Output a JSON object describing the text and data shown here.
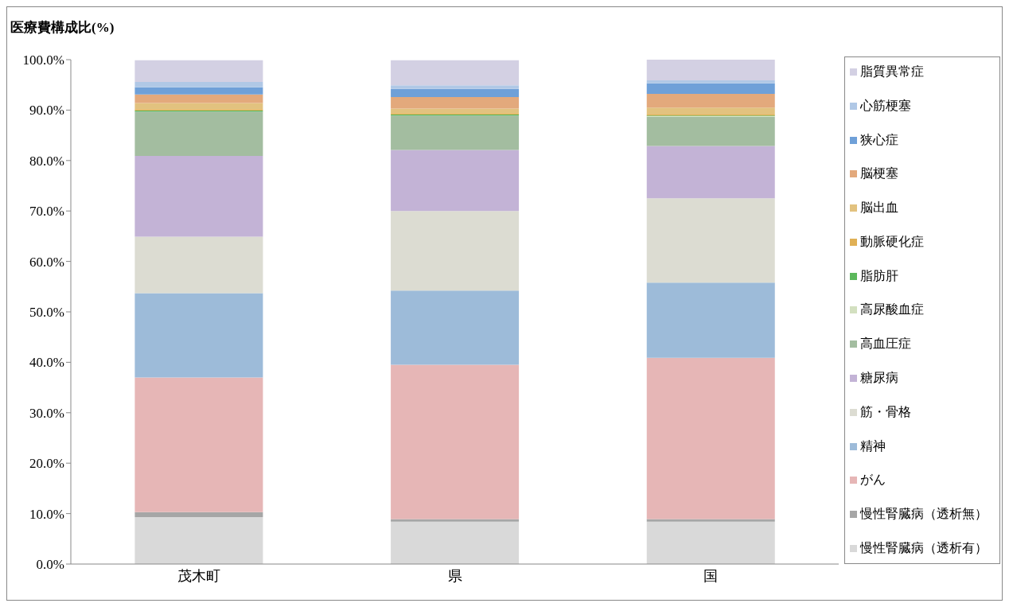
{
  "chart_data": {
    "type": "bar",
    "title": "医療費構成比(%)",
    "stacked": true,
    "legend": "right",
    "categories": [
      "茂木町",
      "県",
      "国"
    ],
    "ylim": [
      0,
      100
    ],
    "yticks": [
      {
        "value": 0,
        "label": "0.0%"
      },
      {
        "value": 10,
        "label": "10.0%"
      },
      {
        "value": 20,
        "label": "20.0%"
      },
      {
        "value": 30,
        "label": "30.0%"
      },
      {
        "value": 40,
        "label": "40.0%"
      },
      {
        "value": 50,
        "label": "50.0%"
      },
      {
        "value": 60,
        "label": "60.0%"
      },
      {
        "value": 70,
        "label": "70.0%"
      },
      {
        "value": 80,
        "label": "80.0%"
      },
      {
        "value": 90,
        "label": "90.0%"
      },
      {
        "value": 100,
        "label": "100.0%"
      }
    ],
    "series": [
      {
        "name": "慢性腎臓病（透析有）",
        "color": "#d9d9d9",
        "values": [
          9.3,
          8.4,
          8.4
        ]
      },
      {
        "name": "慢性腎臓病（透析無）",
        "color": "#a6a6a6",
        "values": [
          1.0,
          0.5,
          0.5
        ]
      },
      {
        "name": "がん",
        "color": "#e6b6b6",
        "values": [
          26.7,
          30.6,
          32.0
        ]
      },
      {
        "name": "精神",
        "color": "#9dbbd9",
        "values": [
          16.7,
          14.7,
          14.9
        ]
      },
      {
        "name": "筋・骨格",
        "color": "#dcdcd2",
        "values": [
          11.2,
          15.8,
          16.7
        ]
      },
      {
        "name": "糖尿病",
        "color": "#c3b3d6",
        "values": [
          16.0,
          12.1,
          10.4
        ]
      },
      {
        "name": "高血圧症",
        "color": "#a3bda0",
        "values": [
          8.8,
          6.8,
          5.8
        ]
      },
      {
        "name": "高尿酸血症",
        "color": "#d3e0c0",
        "values": [
          null,
          null,
          0.1
        ]
      },
      {
        "name": "脂肪肝",
        "color": "#5cb85c",
        "values": [
          0.2,
          0.2,
          0.1
        ]
      },
      {
        "name": "動脈硬化症",
        "color": "#e0b055",
        "values": [
          0.3,
          0.3,
          0.2
        ]
      },
      {
        "name": "脳出血",
        "color": "#e2c27f",
        "values": [
          1.2,
          0.9,
          1.4
        ]
      },
      {
        "name": "脳梗塞",
        "color": "#e3a97c",
        "values": [
          1.7,
          2.3,
          2.7
        ]
      },
      {
        "name": "狭心症",
        "color": "#6fa0d8",
        "values": [
          1.4,
          1.6,
          2.1
        ]
      },
      {
        "name": "心筋梗塞",
        "color": "#b0c8e6",
        "values": [
          1.1,
          0.7,
          0.6
        ]
      },
      {
        "name": "脂質異常症",
        "color": "#d3d0e3",
        "values": [
          4.3,
          5.0,
          4.1
        ]
      }
    ]
  }
}
